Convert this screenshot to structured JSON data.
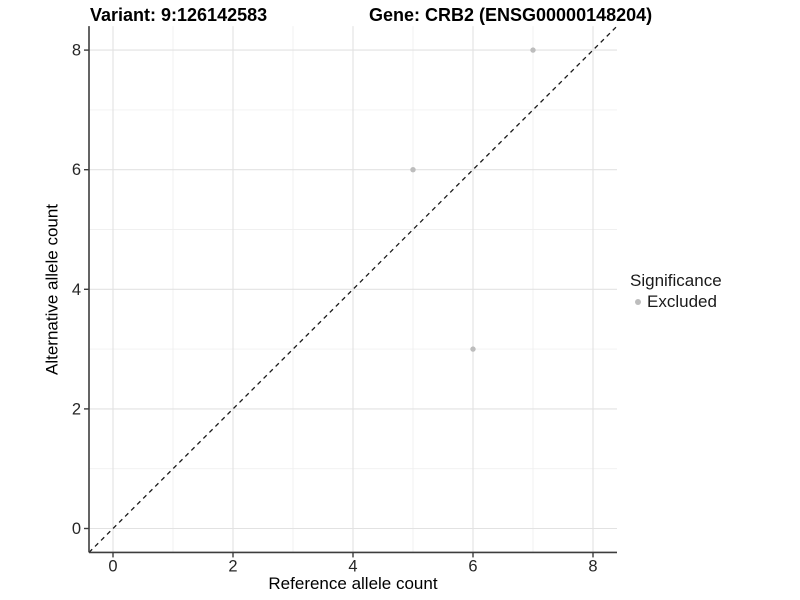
{
  "titles": {
    "variant": "Variant: 9:126142583",
    "gene": "Gene: CRB2 (ENSG00000148204)"
  },
  "legend": {
    "title": "Significance",
    "entries": [
      {
        "label": "Excluded",
        "color": "#bdbdbd"
      }
    ]
  },
  "chart_data": {
    "type": "scatter",
    "title": "Variant: 9:126142583   Gene: CRB2 (ENSG00000148204)",
    "xlabel": "Reference allele count",
    "ylabel": "Alternative allele count",
    "xlim": [
      -0.4,
      8.4
    ],
    "ylim": [
      -0.4,
      8.4
    ],
    "x_ticks": [
      0,
      2,
      4,
      6,
      8
    ],
    "y_ticks": [
      0,
      2,
      4,
      6,
      8
    ],
    "grid": "major+minor",
    "legend_position": "right",
    "series": [
      {
        "name": "Excluded",
        "color": "#bdbdbd",
        "points": [
          {
            "x": 5,
            "y": 6
          },
          {
            "x": 6,
            "y": 3
          },
          {
            "x": 7,
            "y": 8
          }
        ]
      }
    ],
    "reference_line": {
      "type": "identity",
      "slope": 1,
      "intercept": 0,
      "style": "dashed",
      "color": "#1a1a1a"
    }
  },
  "colors": {
    "point": "#bdbdbd",
    "grid_major": "#e2e2e2",
    "grid_minor": "#f0f0f0",
    "axis_line": "#3d3d3d",
    "background": "#ffffff"
  }
}
